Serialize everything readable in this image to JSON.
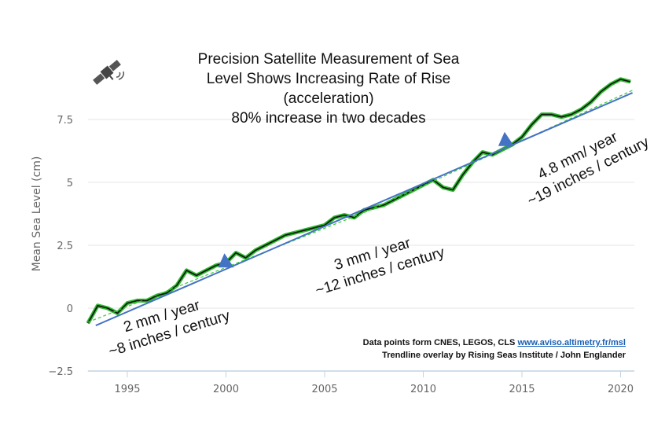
{
  "chart_data": {
    "type": "line",
    "title_lines": [
      "Precision Satellite Measurement of Sea",
      "Level Shows Increasing Rate of Rise",
      "(acceleration)",
      "80% increase in two decades"
    ],
    "ylabel": "Mean Sea Level (cm)",
    "xlabel": "",
    "xlim": [
      1993,
      2020.7
    ],
    "ylim": [
      -2.5,
      9.5
    ],
    "xticks": [
      1995,
      2000,
      2005,
      2010,
      2015,
      2020
    ],
    "yticks": [
      -2.5,
      0,
      2.5,
      5,
      7.5
    ],
    "ytick_labels": [
      "−2.5",
      "0",
      "2.5",
      "5",
      "7.5"
    ],
    "grid": "horizontal",
    "colors": {
      "data_green": "#2db82d",
      "data_black": "#111111",
      "trend_blue": "#4472c4",
      "fit_green_dashed": "#33cc33",
      "grid": "#e6e6e6",
      "axis": "#c0d4e4"
    },
    "series": {
      "x": [
        1993.0,
        1993.5,
        1994.0,
        1994.5,
        1995.0,
        1995.5,
        1996.0,
        1996.5,
        1997.0,
        1997.5,
        1998.0,
        1998.5,
        1999.0,
        1999.5,
        2000.0,
        2000.5,
        2001.0,
        2001.5,
        2002.0,
        2002.5,
        2003.0,
        2003.5,
        2004.0,
        2004.5,
        2005.0,
        2005.5,
        2006.0,
        2006.5,
        2007.0,
        2007.5,
        2008.0,
        2008.5,
        2009.0,
        2009.5,
        2010.0,
        2010.5,
        2011.0,
        2011.5,
        2012.0,
        2012.5,
        2013.0,
        2013.5,
        2014.0,
        2014.5,
        2015.0,
        2015.5,
        2016.0,
        2016.5,
        2017.0,
        2017.5,
        2018.0,
        2018.5,
        2019.0,
        2019.5,
        2020.0,
        2020.5
      ],
      "y": [
        -0.6,
        0.1,
        0.0,
        -0.2,
        0.2,
        0.3,
        0.3,
        0.5,
        0.6,
        0.9,
        1.5,
        1.3,
        1.5,
        1.7,
        1.8,
        2.2,
        2.0,
        2.3,
        2.5,
        2.7,
        2.9,
        3.0,
        3.1,
        3.2,
        3.3,
        3.6,
        3.7,
        3.6,
        3.9,
        4.0,
        4.1,
        4.3,
        4.5,
        4.7,
        4.9,
        5.1,
        4.8,
        4.7,
        5.3,
        5.8,
        6.2,
        6.1,
        6.3,
        6.5,
        6.8,
        7.3,
        7.7,
        7.7,
        7.6,
        7.7,
        7.9,
        8.2,
        8.6,
        8.9,
        9.1,
        9.0
      ]
    },
    "fit_dashed": {
      "x": [
        1993.0,
        2007.0,
        2020.6
      ],
      "y": [
        -0.56,
        3.8,
        8.66
      ]
    },
    "trendline": {
      "x": [
        1993.4,
        2020.6
      ],
      "y": [
        -0.69,
        8.56
      ],
      "arrow_markers_x": [
        2000.0,
        2014.2
      ]
    },
    "annotations": [
      {
        "lines": [
          "2 mm / year",
          "~8 inches / century"
        ]
      },
      {
        "lines": [
          "3 mm / year",
          "~12 inches / century"
        ]
      },
      {
        "lines": [
          "4.8 mm/ year",
          "~19 inches / century"
        ]
      }
    ]
  },
  "credits": {
    "line1_text": "Data points form CNES, LEGOS, CLS ",
    "line1_link": "www.aviso.altimetry.fr/msl",
    "line2": "Trendline overlay by Rising Seas Institute / John Englander"
  },
  "icons": {
    "satellite": "satellite-icon"
  }
}
